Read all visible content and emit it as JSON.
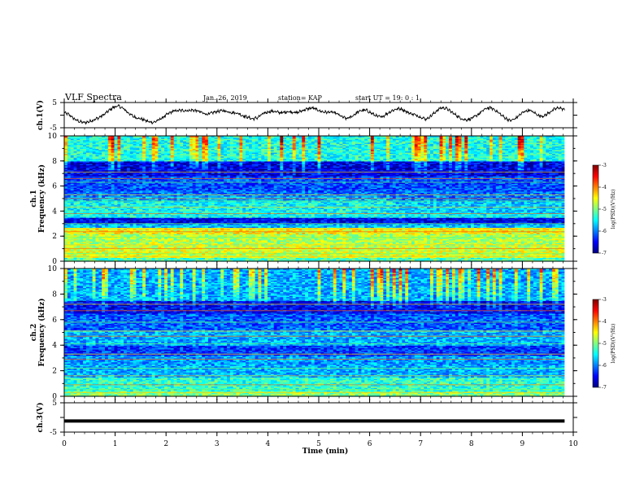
{
  "header": {
    "title": "VLF Spectra",
    "date": "Jan. 26, 2019",
    "station": "station= KAP",
    "start": "start  UT =   19: 0  : 1"
  },
  "chart_data": [
    {
      "type": "line",
      "name": "ch1-waveform",
      "ylabel": "ch.1(V)",
      "ylim": [
        -5,
        5
      ],
      "yticks": [
        "5",
        "-5"
      ],
      "xlim": [
        0,
        10
      ],
      "x_end": 9.83,
      "waveform_samples": [
        1.0,
        0.2,
        -1.5,
        -2.5,
        -3.0,
        -2.6,
        -1.8,
        -1.0,
        0.2,
        1.8,
        3.2,
        3.6,
        2.5,
        0.8,
        -0.6,
        -1.2,
        -1.8,
        -2.6,
        -2.9,
        -2.0,
        -0.8,
        0.6,
        1.6,
        1.8,
        1.9,
        1.8,
        2.0,
        1.6,
        0.8,
        0.3,
        1.0,
        1.5,
        1.8,
        1.4,
        1.0,
        0.8,
        -0.2,
        -0.8,
        -1.5,
        -1.0,
        0.4,
        1.2,
        1.6,
        1.2,
        0.9,
        1.4,
        1.3,
        0.9,
        1.8,
        2.4,
        2.9,
        2.2,
        1.4,
        1.1,
        1.2,
        0.6,
        -0.6,
        -1.4,
        -0.6,
        0.9,
        1.9,
        1.9,
        0.8,
        -0.3,
        -0.8,
        0.4,
        1.6,
        2.4,
        2.6,
        1.4,
        0.6,
        0.0,
        -0.8,
        -1.6,
        -0.4,
        1.4,
        2.9,
        2.8,
        1.5,
        0.1,
        -1.2,
        -1.9,
        -1.5,
        -0.5,
        1.0,
        2.5,
        3.0,
        2.0,
        0.4,
        -1.1,
        -2.2,
        -1.5,
        0.2,
        1.6,
        1.9,
        0.8,
        -0.4,
        -0.2,
        1.2,
        2.4,
        3.0,
        2.0
      ]
    },
    {
      "type": "heatmap",
      "name": "ch1-spectrogram",
      "ylabel_top": "ch.1",
      "ylabel": "Frequency (kHz)",
      "ylim": [
        0,
        10
      ],
      "yticks": [
        "0",
        "2",
        "4",
        "6",
        "8",
        "10"
      ],
      "xlim": [
        0,
        10
      ],
      "x_end": 9.83,
      "colorbar": {
        "label": "log(PSD)(V²/Hz)",
        "range": [
          -7,
          -3
        ],
        "ticks": [
          "-3",
          "-4",
          "-5",
          "-6",
          "-7"
        ],
        "colors": [
          "#000080",
          "#0000ff",
          "#0080ff",
          "#00ffff",
          "#80ff80",
          "#ffff00",
          "#ff8000",
          "#ff0000",
          "#800000"
        ]
      },
      "bands_khz": [
        {
          "from": 0.0,
          "to": 0.3,
          "level": 0.45
        },
        {
          "from": 0.3,
          "to": 1.2,
          "level": 0.58
        },
        {
          "from": 1.2,
          "to": 2.2,
          "level": 0.55
        },
        {
          "from": 2.2,
          "to": 2.7,
          "level": 0.62
        },
        {
          "from": 2.7,
          "to": 3.0,
          "level": 0.32
        },
        {
          "from": 3.0,
          "to": 3.5,
          "level": 0.12
        },
        {
          "from": 3.5,
          "to": 4.8,
          "level": 0.38
        },
        {
          "from": 4.8,
          "to": 5.2,
          "level": 0.3
        },
        {
          "from": 5.2,
          "to": 5.6,
          "level": 0.24
        },
        {
          "from": 5.6,
          "to": 6.8,
          "level": 0.2
        },
        {
          "from": 6.8,
          "to": 8.0,
          "level": 0.1
        },
        {
          "from": 8.0,
          "to": 10.0,
          "level": 0.4
        }
      ]
    },
    {
      "type": "heatmap",
      "name": "ch2-spectrogram",
      "ylabel_top": "ch.2",
      "ylabel": "Frequency (kHz)",
      "ylim": [
        0,
        10
      ],
      "yticks": [
        "0",
        "2",
        "4",
        "6",
        "8",
        "10"
      ],
      "xlim": [
        0,
        10
      ],
      "x_end": 9.83,
      "colorbar": {
        "label": "log(PSD)(V²/Hz)",
        "range": [
          -7,
          -3
        ],
        "ticks": [
          "-3",
          "-4",
          "-5",
          "-6",
          "-7"
        ],
        "colors": [
          "#000080",
          "#0000ff",
          "#0080ff",
          "#00ffff",
          "#80ff80",
          "#ffff00",
          "#ff8000",
          "#ff0000",
          "#800000"
        ]
      },
      "bands_khz": [
        {
          "from": 0.0,
          "to": 0.4,
          "level": 0.5
        },
        {
          "from": 0.4,
          "to": 1.5,
          "level": 0.42
        },
        {
          "from": 1.5,
          "to": 2.5,
          "level": 0.3
        },
        {
          "from": 2.5,
          "to": 3.2,
          "level": 0.28
        },
        {
          "from": 3.2,
          "to": 4.0,
          "level": 0.18
        },
        {
          "from": 4.0,
          "to": 5.2,
          "level": 0.3
        },
        {
          "from": 5.2,
          "to": 6.5,
          "level": 0.22
        },
        {
          "from": 6.5,
          "to": 7.5,
          "level": 0.12
        },
        {
          "from": 7.5,
          "to": 10.0,
          "level": 0.3
        }
      ]
    },
    {
      "type": "line",
      "name": "ch3-waveform",
      "ylabel": "ch.3(V)",
      "ylim": [
        -5,
        5
      ],
      "yticks": [
        "5",
        "-5"
      ],
      "xlim": [
        0,
        10
      ],
      "x_end": 9.83,
      "constant_value": -1.2
    }
  ],
  "xaxis": {
    "label": "Time  (min)",
    "ticks": [
      "0",
      "1",
      "2",
      "3",
      "4",
      "5",
      "6",
      "7",
      "8",
      "9",
      "10"
    ]
  }
}
